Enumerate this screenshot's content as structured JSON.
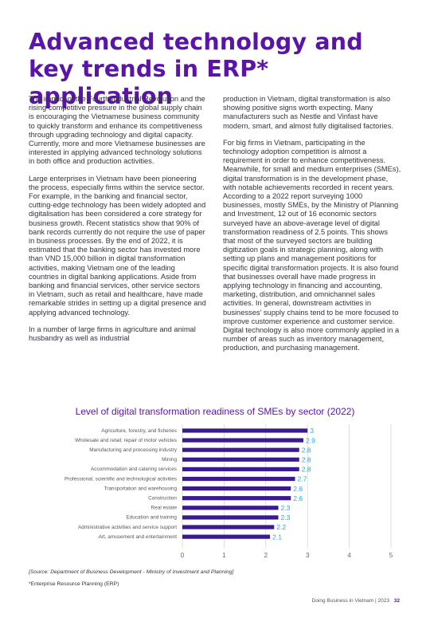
{
  "title": "Advanced technology and key trends in ERP* application",
  "left_paragraphs": [
    "The impact of the Fourth Industrial Revolution and the rising competitive pressure in the global supply chain is encouraging the Vietnamese business community to quickly transform and enhance its competitiveness through upgrading technology and digital capacity. Currently, more and more Vietnamese businesses are interested in applying advanced technology solutions in both office and production activities.",
    "Large enterprises in Vietnam have been pioneering the process, especially firms within the service sector. For example, in the banking and financial sector, cutting-edge technology has been widely adopted and digitalisation has been considered a core strategy for business growth.  Recent statistics show that 90% of bank records currently do not require the use of paper in business processes. By the end of 2022, it is estimated that the banking sector has invested more than VND 15,000 billion in digital transformation activities, making Vietnam one of the leading countries in digital banking applications. Aside from banking and financial services, other service sectors in Vietnam, such as retail and healthcare, have made remarkable strides in setting up a digital presence and applying advanced technology.",
    "In a number of large firms in agriculture and animal husbandry as well as industrial"
  ],
  "right_paragraphs": [
    "production in Vietnam, digital transformation is also showing positive signs worth expecting. Many manufacturers such as Nestle and Vinfast have modern, smart, and almost fully digitalised factories.",
    "For big firms in Vietnam, participating in the technology adoption competition is almost a requirement in order to enhance competitiveness. Meanwhile, for small and medium enterprises (SMEs), digital transformation is in the development phase, with notable achievements recorded in recent years. According to a 2022 report surveying 1000 businesses, mostly SMEs, by the Ministry of Planning and Investment, 12 out of 16 economic sectors surveyed have an above-average level of digital transformation readiness of 2.5 points. This shows that most of the surveyed sectors are building digitization goals in strategic planning, along with setting up plans and management positions for specific digital transformation projects. It is also found that businesses overall have made progress in applying technology in financing and accounting, marketing, distribution, and omnichannel sales activities. In general, downstream activities in businesses' supply chains tend to be more focused to improve customer experience and customer service. Digital technology is also more commonly applied in a number of areas such as inventory management, production, and purchasing management."
  ],
  "chart_data": {
    "type": "bar",
    "orientation": "horizontal",
    "title": "Level of digital transformation readiness of SMEs by sector (2022)",
    "categories": [
      "Agriculture, forestry, and fisheries",
      "Wholesale and retail; repair of motor vehicles",
      "Manufacturing and processing industry",
      "Mining",
      "Accommodation and catering services",
      "Professional, scientific and technological activities",
      "Transportation and warehousing",
      "Construction",
      "Real estate",
      "Education and training",
      "Administrative activities and service support",
      "Art, amusement and entertainment"
    ],
    "values": [
      3,
      2.9,
      2.8,
      2.8,
      2.8,
      2.7,
      2.6,
      2.6,
      2.3,
      2.3,
      2.2,
      2.1
    ],
    "value_labels": [
      "3",
      "2.9",
      "2.8",
      "2.8",
      "2.8",
      "2.7",
      "2.6",
      "2.6",
      "2.3",
      "2.3",
      "2.2",
      "2.1"
    ],
    "xlim": [
      0,
      5
    ],
    "xticks": [
      "0",
      "1",
      "2",
      "3",
      "4",
      "5"
    ],
    "grid": true,
    "bar_color": "#3a1a8c",
    "label_color": "#2aa8d8",
    "grid_color": "#c8c8d0"
  },
  "source": "[Source: Department of Business Development - Ministry of Investment and Planning]",
  "footnote": "*Enterprise Resource Planning (ERP)",
  "footer": {
    "text": "Doing Business in Vietnam | 2023",
    "page": "32"
  }
}
